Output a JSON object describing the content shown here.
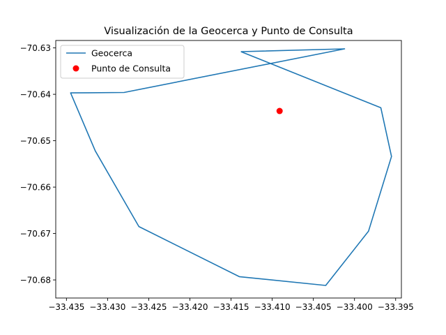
{
  "chart_data": {
    "type": "line",
    "title": "Visualización de la Geocerca y Punto de Consulta",
    "xlabel": "",
    "ylabel": "",
    "xlim": [
      -33.4363,
      -33.3943
    ],
    "ylim": [
      -70.6839,
      -70.6284
    ],
    "x_ticks": [
      -33.435,
      -33.43,
      -33.425,
      -33.42,
      -33.415,
      -33.41,
      -33.405,
      -33.4,
      -33.395
    ],
    "x_tick_labels": [
      "−33.435",
      "−33.430",
      "−33.425",
      "−33.420",
      "−33.415",
      "−33.410",
      "−33.405",
      "−33.400",
      "−33.395"
    ],
    "y_ticks": [
      -70.63,
      -70.64,
      -70.65,
      -70.66,
      -70.67,
      -70.68
    ],
    "y_tick_labels": [
      "−70.63",
      "−70.64",
      "−70.65",
      "−70.66",
      "−70.67",
      "−70.68"
    ],
    "grid": false,
    "legend_position": "top-left",
    "series": [
      {
        "name": "Geocerca",
        "kind": "line",
        "color": "#1f77b4",
        "points": [
          [
            -33.4138,
            -70.6308
          ],
          [
            -33.4012,
            -70.6302
          ],
          [
            -33.428,
            -70.6396
          ],
          [
            -33.4345,
            -70.6397
          ],
          [
            -33.4315,
            -70.6522
          ],
          [
            -33.4262,
            -70.6685
          ],
          [
            -33.414,
            -70.6793
          ],
          [
            -33.4035,
            -70.6812
          ],
          [
            -33.3983,
            -70.6695
          ],
          [
            -33.3955,
            -70.6534
          ],
          [
            -33.3968,
            -70.6429
          ],
          [
            -33.4138,
            -70.6308
          ]
        ]
      },
      {
        "name": "Punto de Consulta",
        "kind": "scatter",
        "color": "#ff0000",
        "points": [
          [
            -33.4091,
            -70.6436
          ]
        ]
      }
    ]
  }
}
